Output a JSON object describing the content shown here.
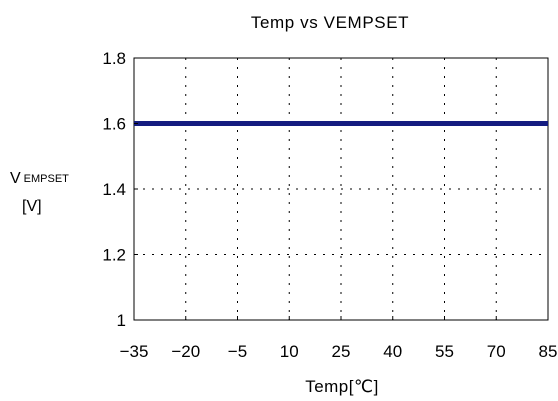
{
  "chart_data": {
    "type": "line",
    "title": "Temp vs VEMPSET",
    "xlabel": "Temp[℃]",
    "ylabel": {
      "main": "V",
      "subscript": "EMPSET",
      "unit": "[V]"
    },
    "x_ticks": [
      -35,
      -20,
      -5,
      10,
      25,
      40,
      55,
      70,
      85
    ],
    "x_tick_labels": [
      "−35",
      "−20",
      "−5",
      "10",
      "25",
      "40",
      "55",
      "70",
      "85"
    ],
    "y_ticks": [
      1,
      1.2,
      1.4,
      1.6,
      1.8
    ],
    "y_tick_labels": [
      "1",
      "1.2",
      "1.4",
      "1.6",
      "1.8"
    ],
    "xlim": [
      -35,
      85
    ],
    "ylim": [
      1,
      1.8
    ],
    "grid": true,
    "series": [
      {
        "x": [
          -35,
          85
        ],
        "y": [
          1.6,
          1.6
        ],
        "color": "#141c80"
      }
    ]
  }
}
